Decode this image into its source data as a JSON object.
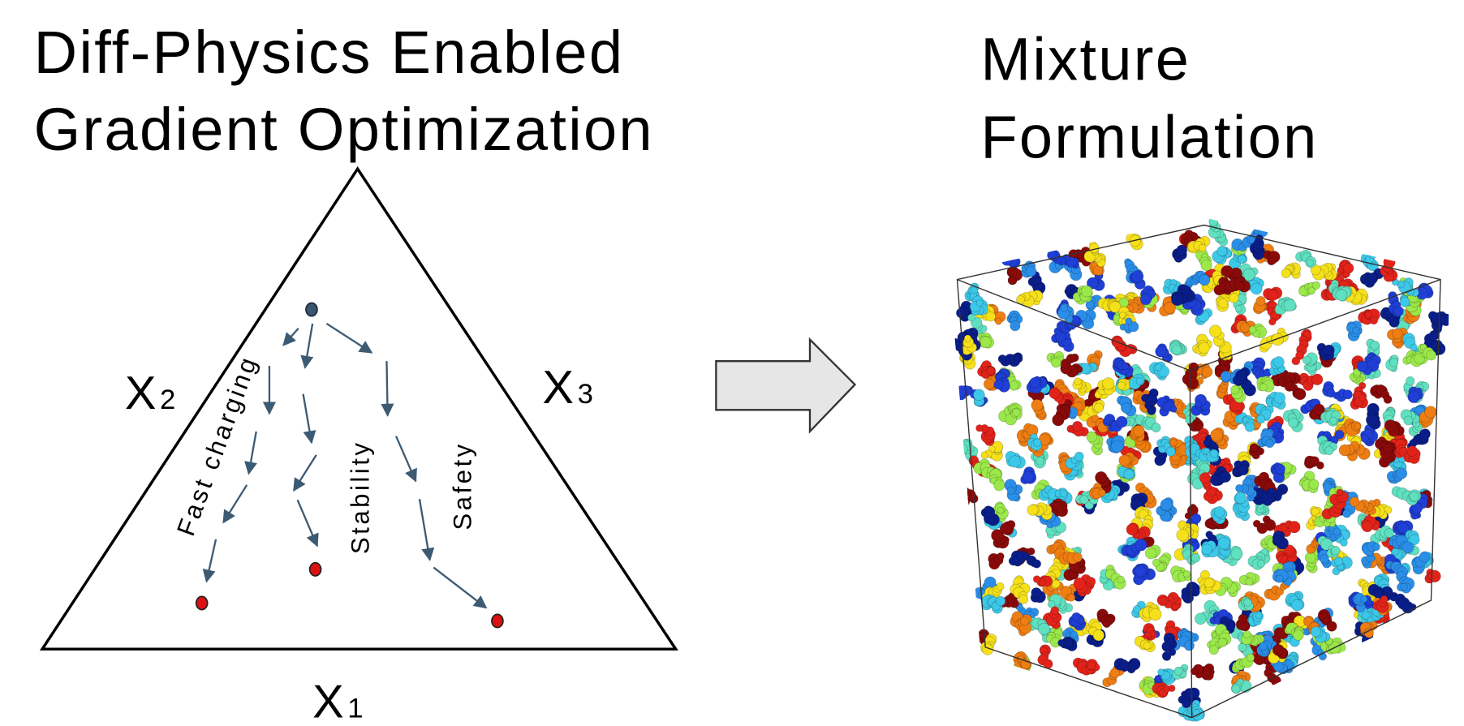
{
  "left_panel": {
    "title": [
      "Diff-Physics Enabled",
      "Gradient Optimization"
    ],
    "axes": [
      {
        "letter": "X",
        "index": "1"
      },
      {
        "letter": "X",
        "index": "2"
      },
      {
        "letter": "X",
        "index": "3"
      }
    ],
    "paths": [
      "Fast charging",
      "Stability",
      "Safety"
    ]
  },
  "right_panel": {
    "title": [
      "Mixture",
      "Formulation"
    ]
  }
}
